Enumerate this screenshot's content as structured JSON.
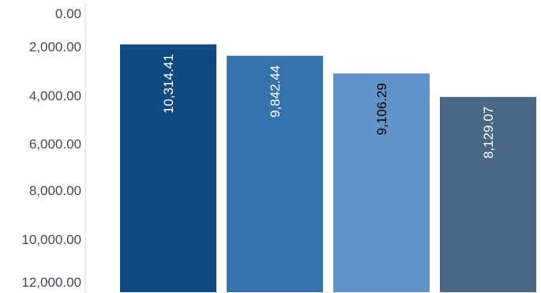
{
  "chart_data": {
    "type": "bar",
    "title": "",
    "xlabel": "",
    "ylabel": "",
    "categories": [
      "",
      "",
      "",
      ""
    ],
    "values": [
      10314.41,
      9842.44,
      9106.29,
      8129.07
    ],
    "data_labels": [
      "10,314.41",
      "9,842.44",
      "9,106.29",
      "8,129.07"
    ],
    "bar_colors": [
      "#114a83",
      "#3672ab",
      "#6193c9",
      "#4a6884"
    ],
    "label_colors": [
      "#ffffff",
      "#ffffff",
      "#000000",
      "#ffffff"
    ],
    "ylim": [
      0,
      12000
    ],
    "yticks": [
      0,
      2000,
      4000,
      6000,
      8000,
      10000,
      12000
    ],
    "ytick_labels": [
      "0.00",
      "2,000.00",
      "4,000.00",
      "6,000.00",
      "8,000.00",
      "10,000.00",
      "12,000.00"
    ],
    "grid": false,
    "legend": "none"
  }
}
